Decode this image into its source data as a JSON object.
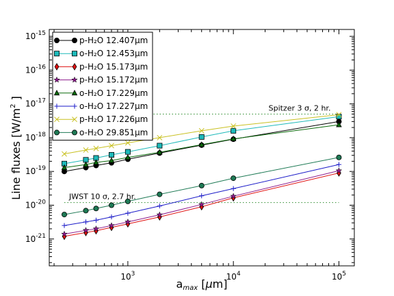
{
  "chart_data": {
    "type": "line",
    "title": "",
    "xlabel": "a_max [μm]",
    "ylabel": "Line fluxes [W/m²]",
    "xscale": "log",
    "yscale": "log",
    "xlim": [
      180,
      140000
    ],
    "ylim": [
      1.6e-22,
      1.6e-15
    ],
    "x_ticks": [
      {
        "value": 1000,
        "base": "10",
        "exp": "3"
      },
      {
        "value": 10000,
        "base": "10",
        "exp": "4"
      },
      {
        "value": 100000,
        "base": "10",
        "exp": "5"
      }
    ],
    "y_ticks": [
      {
        "value": 1e-21,
        "base": "10",
        "exp": "-21"
      },
      {
        "value": 1e-20,
        "base": "10",
        "exp": "-20"
      },
      {
        "value": 1e-19,
        "base": "10",
        "exp": "-19"
      },
      {
        "value": 1e-18,
        "base": "10",
        "exp": "-18"
      },
      {
        "value": 1e-17,
        "base": "10",
        "exp": "-17"
      },
      {
        "value": 1e-16,
        "base": "10",
        "exp": "-16"
      },
      {
        "value": 1e-15,
        "base": "10",
        "exp": "-15"
      }
    ],
    "x": [
      250,
      400,
      500,
      700,
      1000,
      2000,
      5000,
      10000,
      100000
    ],
    "legend_position": "upper-left",
    "grid": false,
    "series": [
      {
        "name": "p-H₂O 12.407μm",
        "color": "#000000",
        "marker": "circle",
        "values": [
          1e-19,
          1.3e-19,
          1.5e-19,
          1.8e-19,
          2.3e-19,
          3.5e-19,
          6e-19,
          9e-19,
          3e-18
        ]
      },
      {
        "name": "o-H₂O 12.453μm",
        "color": "#1db9b9",
        "marker": "square",
        "values": [
          1.7e-19,
          2.2e-19,
          2.5e-19,
          3.1e-19,
          3.8e-19,
          5.8e-19,
          1.05e-18,
          1.6e-18,
          4.2e-18
        ]
      },
      {
        "name": "p-H₂O 15.173μm",
        "color": "#e01010",
        "marker": "diamond",
        "values": [
          1.2e-21,
          1.55e-21,
          1.75e-21,
          2.2e-21,
          2.8e-21,
          4.5e-21,
          9e-21,
          1.65e-20,
          9e-20
        ]
      },
      {
        "name": "p-H₂O 15.172μm",
        "color": "#8b1a8b",
        "marker": "star",
        "values": [
          1.4e-21,
          1.8e-21,
          2e-21,
          2.5e-21,
          3.2e-21,
          5.2e-21,
          1.05e-20,
          1.85e-20,
          1.05e-19
        ]
      },
      {
        "name": "o-H₂O 17.229μm",
        "color": "#0a6a0a",
        "marker": "triangle",
        "values": [
          1.3e-19,
          1.6e-19,
          1.85e-19,
          2.1e-19,
          2.6e-19,
          3.7e-19,
          6.2e-19,
          9.2e-19,
          2.4e-18
        ]
      },
      {
        "name": "o-H₂O 17.227μm",
        "color": "#1a1ac8",
        "marker": "plus",
        "values": [
          2.5e-21,
          3.2e-21,
          3.6e-21,
          4.5e-21,
          5.8e-21,
          9.5e-21,
          1.9e-20,
          3.1e-20,
          1.6e-19
        ]
      },
      {
        "name": "p-H₂O 17.226μm",
        "color": "#c8c020",
        "marker": "x",
        "values": [
          3.3e-19,
          4.3e-19,
          4.8e-19,
          5.8e-19,
          7e-19,
          1e-18,
          1.6e-18,
          2.2e-18,
          4.8e-18
        ]
      },
      {
        "name": "o-H₂O 29.851μm",
        "color": "#1e7a55",
        "marker": "circle",
        "values": [
          5.3e-21,
          6.9e-21,
          8e-21,
          1e-20,
          1.3e-20,
          2.1e-20,
          3.8e-20,
          6.3e-20,
          2.6e-19
        ]
      }
    ],
    "reference_lines": [
      {
        "label": "Spitzer 3 σ, 2 hr.",
        "y": 5e-18,
        "x_from": 250,
        "x_to": 100000,
        "color": "#2a8a2a"
      },
      {
        "label": "JWST 10 σ, 2.7 hr.",
        "y": 1.2e-20,
        "x_from": 250,
        "x_to": 100000,
        "color": "#2a8a2a"
      }
    ]
  }
}
